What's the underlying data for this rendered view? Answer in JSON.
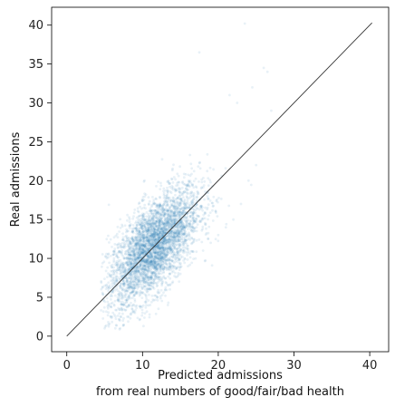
{
  "chart_data": {
    "type": "scatter",
    "title": "",
    "xlabel_lines": [
      "Predicted admissions",
      "from real numbers of good/fair/bad health"
    ],
    "ylabel": "Real admissions",
    "xlim": [
      -2,
      42.5
    ],
    "ylim": [
      -2,
      42.3
    ],
    "xticks": [
      0,
      10,
      20,
      30,
      40
    ],
    "yticks": [
      0,
      5,
      10,
      15,
      20,
      25,
      30,
      35,
      40
    ],
    "grid": false,
    "point_color": "#1f77b4",
    "point_alpha": 0.1,
    "reference_line": {
      "x": [
        0,
        40.3
      ],
      "y": [
        0,
        40.3
      ],
      "color": "#333333"
    },
    "point_cloud": {
      "count": 4000,
      "mean_x": 11.5,
      "mean_y": 11.5,
      "sd_x": 3.0,
      "sd_y": 3.8,
      "correlation": 0.65
    },
    "series": [
      {
        "x": [
          5,
          5.5,
          6,
          7,
          8,
          9,
          10,
          11,
          12,
          13,
          14,
          15,
          16,
          17,
          18,
          19,
          20,
          21,
          22,
          23,
          24,
          25,
          26,
          26.5,
          27,
          23.5,
          24.5,
          22.5,
          21.5,
          17.5
        ],
        "y": [
          1,
          1.5,
          2.5,
          2,
          2.5,
          3,
          3,
          4,
          5,
          6,
          7,
          8,
          9,
          10,
          11,
          12,
          13,
          14,
          15,
          17,
          20,
          22,
          34.5,
          34,
          29,
          40.2,
          32,
          30,
          31,
          36.5
        ]
      }
    ]
  }
}
